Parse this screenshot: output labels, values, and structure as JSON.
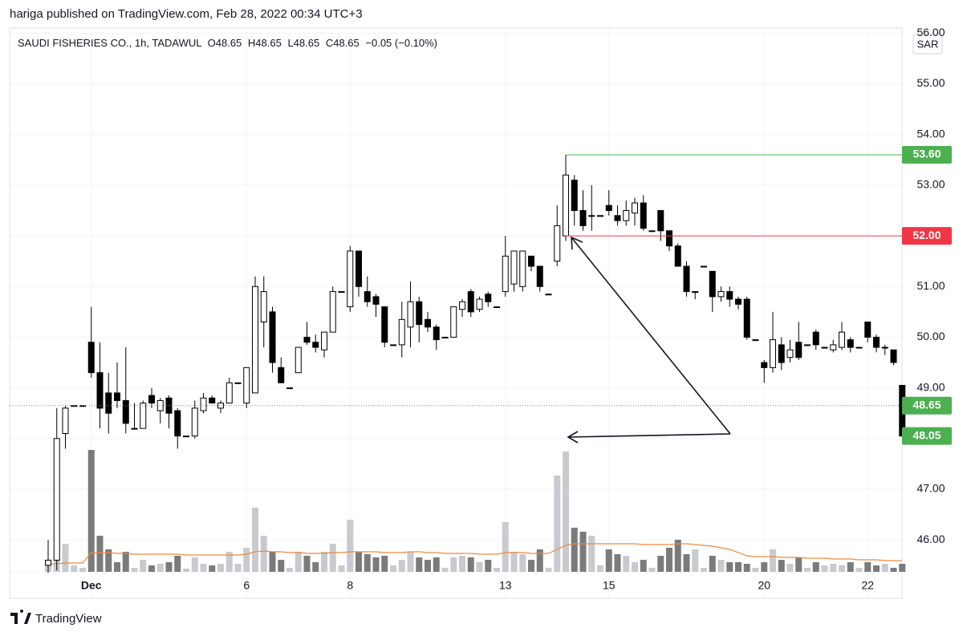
{
  "header": "hariga published on TradingView.com, Feb 28, 2022 00:34 UTC+3",
  "footer": "TradingView",
  "chart_data": {
    "type": "candlestick",
    "legend": {
      "symbol": "SAUDI FISHERIES CO., 1h, TADAWUL",
      "ohlc": [
        "O48.65",
        "H48.65",
        "L48.65",
        "C48.65"
      ],
      "change": "−0.05 (−0.10%)"
    },
    "currency": "SAR",
    "categories": [
      null,
      null,
      null,
      null,
      null,
      "Dec",
      null,
      null,
      null,
      null,
      null,
      null,
      null,
      null,
      null,
      null,
      null,
      null,
      null,
      null,
      null,
      null,
      null,
      "6",
      null,
      null,
      null,
      null,
      null,
      null,
      null,
      null,
      null,
      null,
      null,
      "8",
      null,
      null,
      null,
      null,
      null,
      null,
      null,
      null,
      null,
      null,
      null,
      null,
      null,
      null,
      null,
      null,
      null,
      "13",
      null,
      null,
      null,
      null,
      null,
      null,
      null,
      null,
      null,
      null,
      null,
      "15",
      null,
      null,
      null,
      null,
      null,
      null,
      null,
      null,
      null,
      null,
      null,
      null,
      null,
      null,
      null,
      null,
      null,
      "20",
      null,
      null,
      null,
      null,
      null,
      null,
      null,
      null,
      null,
      null,
      null,
      "22",
      null,
      null,
      null,
      null
    ],
    "open": [
      45.5,
      45.6,
      48.1,
      48.65,
      48.65,
      49.9,
      49.3,
      48.9,
      48.9,
      48.75,
      48.2,
      48.2,
      48.85,
      48.55,
      48.8,
      48.55,
      48.05,
      48.05,
      48.55,
      48.8,
      48.6,
      48.7,
      49.1,
      48.7,
      48.9,
      50.3,
      50.5,
      49.4,
      49.0,
      49.3,
      50.0,
      49.9,
      49.75,
      50.1,
      50.9,
      50.6,
      51.7,
      50.9,
      50.8,
      50.6,
      49.85,
      49.85,
      50.2,
      50.7,
      50.35,
      50.2,
      50.0,
      50.0,
      50.55,
      50.9,
      50.55,
      50.85,
      50.6,
      50.9,
      51.05,
      51.0,
      51.6,
      51.4,
      50.85,
      51.5,
      52.0,
      53.1,
      52.5,
      52.4,
      52.4,
      52.6,
      52.4,
      52.3,
      52.45,
      52.65,
      52.1,
      52.5,
      52.1,
      51.8,
      51.4,
      50.9,
      51.4,
      51.3,
      50.8,
      50.9,
      50.75,
      50.75,
      49.95,
      49.5,
      49.4,
      49.85,
      49.6,
      49.9,
      49.85,
      50.1,
      49.8,
      49.75,
      49.8,
      49.95,
      49.8,
      50.3,
      50.0,
      49.8,
      49.75,
      49.05
    ],
    "high": [
      46.0,
      48.6,
      48.65,
      48.65,
      48.65,
      50.6,
      49.9,
      49.3,
      49.5,
      49.8,
      48.7,
      48.75,
      49.0,
      48.8,
      48.85,
      48.6,
      48.05,
      48.75,
      48.9,
      48.85,
      48.75,
      49.2,
      49.1,
      49.4,
      51.2,
      51.2,
      50.6,
      49.6,
      49.0,
      49.8,
      50.3,
      50.05,
      50.1,
      51.0,
      50.9,
      51.8,
      51.7,
      51.2,
      50.85,
      50.6,
      49.85,
      50.7,
      51.1,
      50.8,
      50.5,
      50.25,
      50.0,
      50.6,
      50.75,
      50.95,
      50.8,
      50.9,
      50.6,
      52.0,
      51.7,
      51.7,
      51.6,
      51.4,
      50.85,
      52.6,
      53.6,
      53.2,
      52.9,
      53.0,
      52.4,
      52.9,
      52.6,
      52.7,
      52.75,
      52.8,
      52.1,
      52.5,
      52.1,
      51.85,
      51.5,
      50.9,
      51.4,
      51.3,
      51.0,
      51.0,
      50.8,
      50.8,
      49.95,
      49.55,
      50.5,
      50.0,
      49.95,
      50.3,
      49.85,
      50.15,
      49.8,
      49.95,
      50.3,
      50.0,
      49.8,
      50.3,
      50.05,
      49.85,
      49.75,
      49.05
    ],
    "low": [
      45.35,
      45.4,
      47.8,
      48.65,
      48.65,
      49.2,
      48.2,
      48.1,
      48.6,
      48.1,
      48.2,
      48.2,
      48.6,
      48.3,
      48.2,
      47.8,
      48.05,
      48.0,
      48.5,
      48.7,
      48.5,
      48.7,
      49.1,
      48.6,
      48.9,
      49.8,
      49.3,
      49.1,
      49.0,
      49.3,
      49.85,
      49.7,
      49.6,
      50.1,
      50.9,
      50.5,
      50.8,
      50.6,
      50.4,
      49.8,
      49.85,
      49.6,
      49.8,
      49.9,
      50.1,
      49.75,
      50.0,
      50.0,
      50.4,
      50.4,
      50.5,
      50.6,
      50.6,
      50.8,
      50.9,
      50.9,
      51.3,
      50.9,
      50.85,
      51.4,
      51.9,
      52.2,
      52.1,
      52.1,
      52.4,
      52.4,
      52.2,
      52.2,
      52.2,
      52.1,
      52.1,
      51.9,
      51.7,
      51.4,
      50.8,
      50.75,
      51.4,
      50.5,
      50.7,
      50.6,
      50.55,
      49.95,
      49.95,
      49.1,
      49.3,
      49.35,
      49.5,
      49.55,
      49.85,
      49.75,
      49.8,
      49.7,
      49.75,
      49.7,
      49.8,
      49.9,
      49.7,
      49.65,
      49.45,
      48.05
    ],
    "close": [
      45.6,
      48.0,
      48.6,
      48.65,
      48.65,
      49.3,
      48.6,
      48.5,
      48.75,
      48.3,
      48.2,
      48.7,
      48.7,
      48.75,
      48.5,
      48.05,
      48.05,
      48.6,
      48.8,
      48.7,
      48.7,
      49.1,
      49.1,
      49.4,
      51.0,
      50.9,
      49.5,
      49.1,
      49.0,
      49.8,
      49.9,
      49.8,
      50.1,
      50.9,
      50.9,
      51.7,
      51.0,
      50.7,
      50.65,
      49.9,
      49.85,
      50.35,
      50.7,
      50.25,
      50.2,
      49.95,
      50.0,
      50.6,
      50.7,
      50.5,
      50.75,
      50.7,
      50.6,
      51.6,
      51.7,
      51.7,
      51.4,
      51.0,
      50.85,
      52.2,
      53.2,
      52.5,
      52.2,
      52.4,
      52.4,
      52.5,
      52.3,
      52.5,
      52.65,
      52.15,
      52.1,
      52.1,
      51.8,
      51.4,
      50.9,
      50.9,
      51.4,
      50.8,
      50.9,
      50.75,
      50.65,
      50.0,
      49.95,
      49.4,
      49.95,
      49.5,
      49.75,
      49.6,
      49.85,
      49.85,
      49.8,
      49.85,
      50.1,
      49.8,
      49.8,
      50.0,
      49.8,
      49.8,
      49.5,
      48.05
    ],
    "volume": [
      8,
      18,
      35,
      8,
      5,
      152,
      45,
      28,
      12,
      25,
      5,
      15,
      8,
      10,
      12,
      20,
      4,
      18,
      10,
      8,
      10,
      25,
      10,
      30,
      80,
      45,
      25,
      15,
      5,
      25,
      20,
      12,
      25,
      35,
      8,
      65,
      25,
      22,
      18,
      20,
      8,
      15,
      25,
      18,
      15,
      18,
      5,
      18,
      20,
      18,
      12,
      15,
      5,
      62,
      25,
      22,
      15,
      28,
      5,
      120,
      150,
      55,
      50,
      45,
      8,
      28,
      22,
      20,
      12,
      15,
      5,
      20,
      30,
      40,
      22,
      28,
      5,
      20,
      15,
      12,
      12,
      10,
      5,
      12,
      28,
      15,
      10,
      18,
      5,
      12,
      8,
      10,
      8,
      12,
      5,
      12,
      8,
      10,
      5,
      10
    ],
    "volume_ma": [
      10,
      10,
      11,
      11,
      11,
      24,
      24,
      24,
      23,
      23,
      22,
      22,
      22,
      22,
      22,
      22,
      21,
      21,
      21,
      21,
      21,
      21,
      21,
      22,
      25,
      26,
      25,
      25,
      24,
      24,
      23,
      23,
      23,
      24,
      24,
      25,
      25,
      25,
      25,
      24,
      24,
      24,
      25,
      25,
      24,
      24,
      23,
      23,
      23,
      23,
      22,
      22,
      22,
      24,
      24,
      24,
      23,
      23,
      23,
      28,
      33,
      35,
      35,
      35,
      35,
      35,
      35,
      35,
      35,
      34,
      34,
      34,
      34,
      35,
      35,
      34,
      33,
      32,
      30,
      28,
      24,
      20,
      19,
      19,
      19,
      18,
      18,
      18,
      17,
      17,
      17,
      16,
      16,
      16,
      15,
      15,
      15,
      14,
      14,
      14
    ],
    "vlim": [
      0,
      678
    ],
    "ylim": [
      45.37,
      56.1
    ],
    "yticks": [
      {
        "value": 46,
        "label": "46.00"
      },
      {
        "value": 47,
        "label": "47.00"
      },
      {
        "value": 48,
        "label": "48.00"
      },
      {
        "value": 49,
        "label": "49.00"
      },
      {
        "value": 50,
        "label": "50.00"
      },
      {
        "value": 51,
        "label": "51.00"
      },
      {
        "value": 52,
        "label": "52.00"
      },
      {
        "value": 53,
        "label": "53.00"
      },
      {
        "value": 54,
        "label": "54.00"
      },
      {
        "value": 55,
        "label": "55.00"
      },
      {
        "value": 56,
        "label": "56.00"
      }
    ],
    "price_lines": [
      {
        "value": 53.6,
        "label": "53.60",
        "color": "#4caf50",
        "line": "solid",
        "from": 60
      },
      {
        "value": 52,
        "label": "52.00",
        "color": "#f23645",
        "line": "solid",
        "from": 60
      },
      {
        "value": 48.65,
        "label": "48.65",
        "color": "#4caf50",
        "line": "dotted"
      },
      {
        "value": 48.05,
        "label": "48.05",
        "color": "#4caf50",
        "line": "none"
      }
    ],
    "grid": true,
    "up_color": "#ffffff",
    "down_color": "#000000",
    "up_volume_color": "#c9cacf",
    "down_volume_color": "#7b7b7b",
    "ma_color": "#f0883e"
  }
}
